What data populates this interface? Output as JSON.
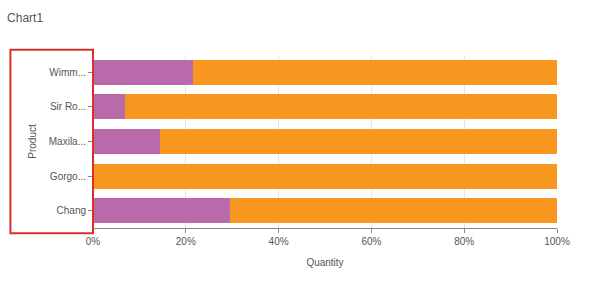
{
  "chart_data": {
    "type": "bar",
    "title": "Chart1",
    "orientation": "horizontal",
    "stacked": true,
    "x_label": "Quantity",
    "y_label": "Product",
    "categories": [
      "Chang",
      "Gorgo...",
      "Maxila...",
      "Sir Ro...",
      "Wimm..."
    ],
    "series": [
      {
        "color": "#b96aab",
        "values": [
          29.5,
          0,
          14.5,
          7,
          21.5
        ]
      },
      {
        "color": "#f7971f",
        "values": [
          70.5,
          100,
          85.5,
          93,
          78.5
        ]
      }
    ],
    "xlim": [
      0,
      100
    ],
    "xticks": [
      {
        "value": 0,
        "label": "0%"
      },
      {
        "value": 20,
        "label": "20%"
      },
      {
        "value": 40,
        "label": "40%"
      },
      {
        "value": 60,
        "label": "60%"
      },
      {
        "value": 80,
        "label": "80%"
      },
      {
        "value": 100,
        "label": "100%"
      }
    ],
    "grid": true
  }
}
